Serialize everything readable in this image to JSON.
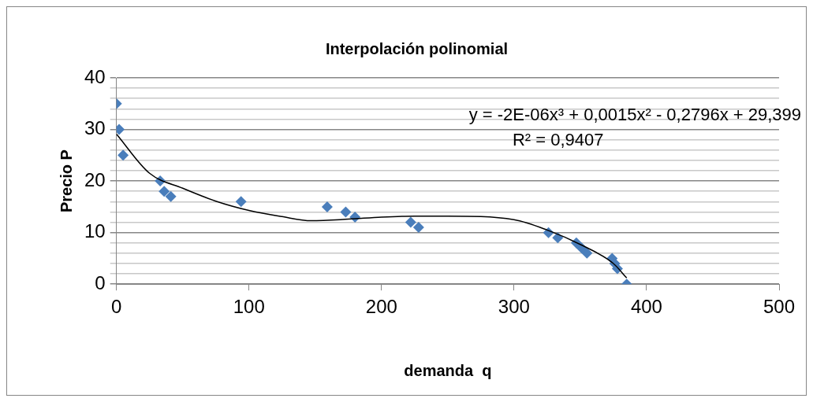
{
  "chart_data": {
    "type": "scatter",
    "title": "Interpolación polinomial",
    "xlabel": "demanda  q",
    "ylabel": "Precio P",
    "xlim": [
      0,
      500
    ],
    "xticks": [
      0,
      100,
      200,
      300,
      400,
      500
    ],
    "ylim": [
      0,
      40
    ],
    "yticks": [
      0,
      {
        "value": 2,
        "label": null
      },
      {
        "value": 4,
        "label": null
      },
      {
        "value": 6,
        "label": null
      },
      {
        "value": 8,
        "label": null
      },
      10,
      {
        "value": 12,
        "label": null
      },
      {
        "value": 14,
        "label": null
      },
      {
        "value": 16,
        "label": null
      },
      {
        "value": 18,
        "label": null
      },
      20,
      {
        "value": 22,
        "label": null
      },
      {
        "value": 24,
        "label": null
      },
      {
        "value": 26,
        "label": null
      },
      {
        "value": 28,
        "label": null
      },
      30,
      {
        "value": 32,
        "label": null
      },
      {
        "value": 34,
        "label": null
      },
      {
        "value": 36,
        "label": null
      },
      {
        "value": 38,
        "label": null
      },
      40
    ],
    "grid": "y",
    "marker": "diamond",
    "legend": false,
    "annotations": [
      "y = -2E-06x³ + 0,0015x² - 0,2796x + 29,399",
      "R² = 0,9407"
    ],
    "series": [
      {
        "type": "scatter",
        "color": "#4a7ebb",
        "x": [
          0,
          2,
          5,
          33,
          36,
          41,
          94,
          159,
          173,
          180,
          222,
          228,
          326,
          333,
          347,
          351,
          355,
          374,
          376,
          378,
          385
        ],
        "values": [
          35,
          30,
          25,
          20,
          18,
          17,
          16,
          15,
          14,
          13,
          12,
          11,
          10,
          9,
          8,
          7,
          6,
          5,
          4,
          3,
          0
        ]
      },
      {
        "type": "line",
        "color": "#000000",
        "marker": "none",
        "x": [
          0,
          25,
          50,
          75,
          100,
          125,
          147,
          175,
          200,
          225,
          250,
          300,
          325,
          350,
          375,
          385
        ],
        "values": [
          29.1,
          21.5,
          18.6,
          16.1,
          14.3,
          13.1,
          12.3,
          12.6,
          13.0,
          13.2,
          13.2,
          12.5,
          10.5,
          7.7,
          4.0,
          1.2
        ]
      }
    ]
  }
}
